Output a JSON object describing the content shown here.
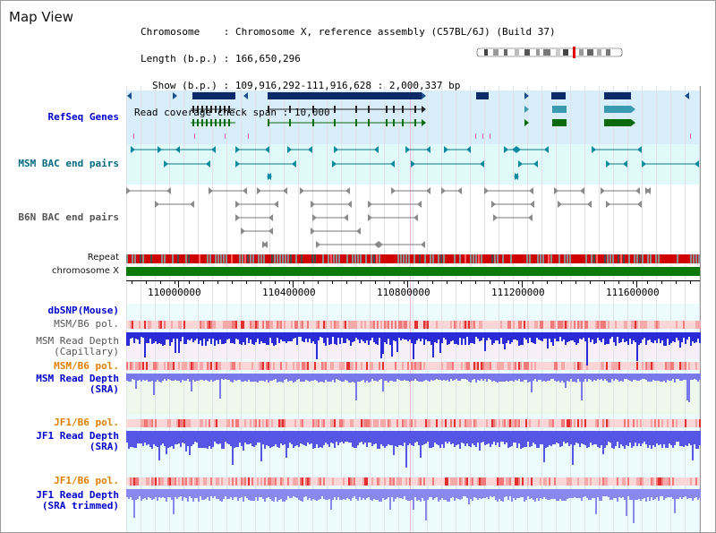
{
  "title": "Map View",
  "info": {
    "chromosome_key": "Chromosome",
    "chromosome_val": "Chromosome X, reference assembly (C57BL/6J) (Build 37)",
    "length_key": "Length (b.p.)",
    "length_val": "166,650,296",
    "show_key": "Show (b.p.)",
    "show_val": "109,916,292-111,916,628 : 2,000,337 bp",
    "span_key": "Read coverage check span",
    "span_val": "10,000"
  },
  "tracks": {
    "refseq": "RefSeq Genes",
    "msm_bac": "MSM BAC end pairs",
    "b6n_bac": "B6N BAC end pairs",
    "repeat": "Repeat",
    "chromosome": "chromosome X",
    "dbsnp": "dbSNP(Mouse)",
    "msm_b6_pol_1": "MSM/B6 pol.",
    "msm_read_depth_cap_1": "MSM Read Depth",
    "msm_read_depth_cap_2": "(Capillary)",
    "msm_b6_pol_2": "MSM/B6 pol.",
    "msm_read_depth_sra_1": "MSM Read Depth",
    "msm_read_depth_sra_2": "(SRA)",
    "jf1_b6_pol_1": "JF1/B6 pol.",
    "jf1_read_depth_sra_1": "JF1 Read Depth",
    "jf1_read_depth_sra_2": "(SRA)",
    "jf1_b6_pol_2": "JF1/B6 pol.",
    "jf1_read_depth_trim_1": "JF1 Read Depth",
    "jf1_read_depth_trim_2": "(SRA trimmed)"
  },
  "axis_ticks": [
    "110000000",
    "110400000",
    "110800000",
    "111200000",
    "111600000"
  ],
  "colors": {
    "blue_label": "#0000cc",
    "teal_label": "#006a80",
    "gray_label": "#555555",
    "orange_label": "#e08000",
    "refseq_bg": "#d8eefa",
    "msm_bg": "#dffaf8",
    "lower_bg": "#ecfcfc",
    "chromosome_green": "#0b7a0b",
    "depth_blue": "#3030e0"
  }
}
